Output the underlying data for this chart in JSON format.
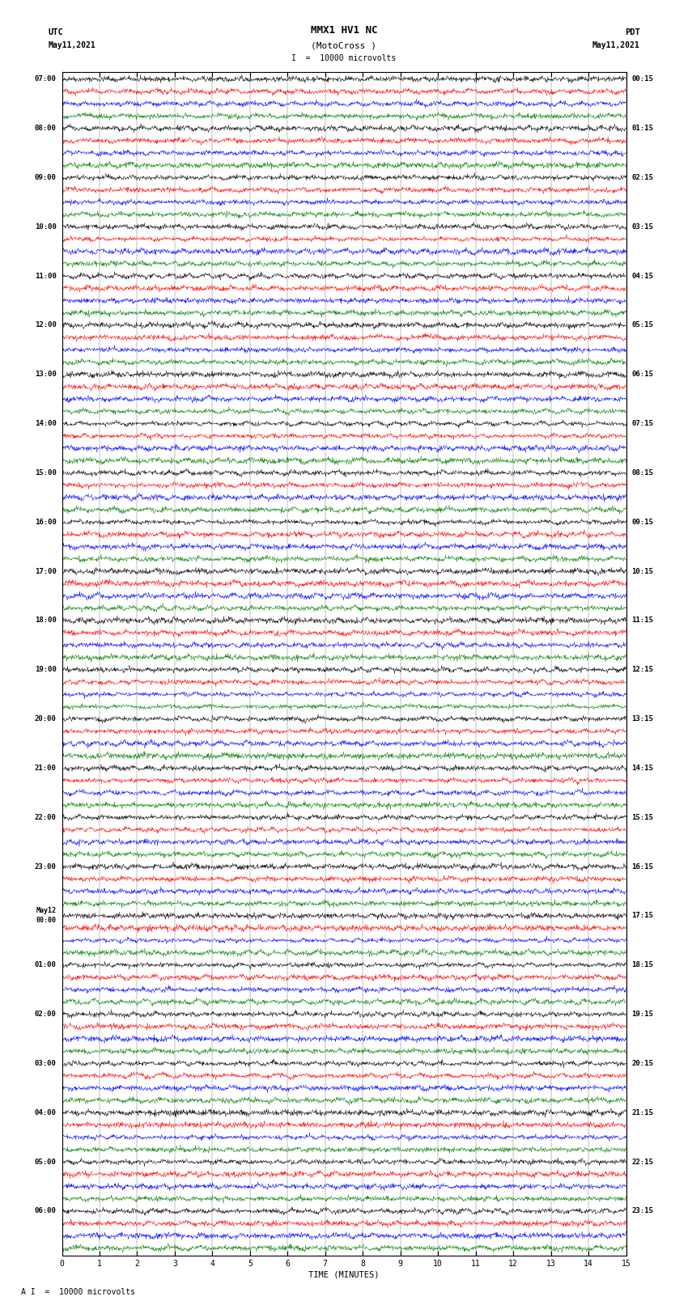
{
  "title_line1": "MMX1 HV1 NC",
  "title_line2": "(MotoCross )",
  "scale_label": "I  =  10000 microvolts",
  "footer_label": "A I  =  10000 microvolts",
  "left_top_label": "UTC",
  "left_date": "May11,2021",
  "right_top_label": "PDT",
  "right_date": "May11,2021",
  "xlabel": "TIME (MINUTES)",
  "xticks": [
    0,
    1,
    2,
    3,
    4,
    5,
    6,
    7,
    8,
    9,
    10,
    11,
    12,
    13,
    14,
    15
  ],
  "xlim": [
    0,
    15
  ],
  "channel_colors": [
    "black",
    "red",
    "blue",
    "green"
  ],
  "bg_color": "white",
  "utc_labels": [
    "07:00",
    "08:00",
    "09:00",
    "10:00",
    "11:00",
    "12:00",
    "13:00",
    "14:00",
    "15:00",
    "16:00",
    "17:00",
    "18:00",
    "19:00",
    "20:00",
    "21:00",
    "22:00",
    "23:00",
    "May12\n00:00",
    "01:00",
    "02:00",
    "03:00",
    "04:00",
    "05:00",
    "06:00"
  ],
  "pdt_labels": [
    "00:15",
    "01:15",
    "02:15",
    "03:15",
    "04:15",
    "05:15",
    "06:15",
    "07:15",
    "08:15",
    "09:15",
    "10:15",
    "11:15",
    "12:15",
    "13:15",
    "14:15",
    "15:15",
    "16:15",
    "17:15",
    "18:15",
    "19:15",
    "20:15",
    "21:15",
    "22:15",
    "23:15"
  ],
  "num_groups": 24,
  "rows_per_group": 4,
  "total_rows": 96,
  "time_points": 1500
}
